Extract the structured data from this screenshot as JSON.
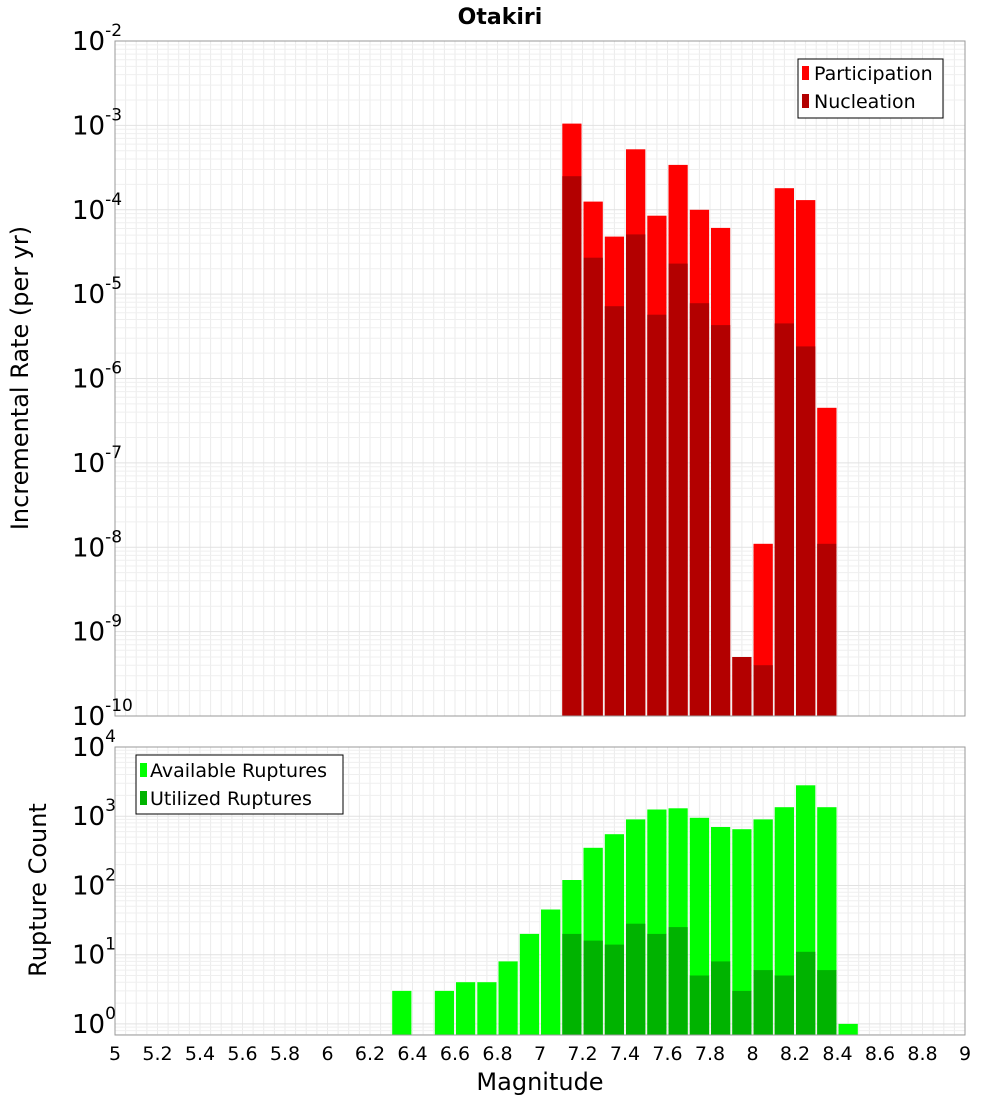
{
  "chart_data": [
    {
      "id": "rate",
      "type": "bar",
      "title": "Otakiri",
      "xlabel": "Magnitude",
      "ylabel": "Incremental Rate (per yr)",
      "xlim": [
        5,
        9
      ],
      "y_log_scale": true,
      "y_exponent_range": [
        -10,
        -2
      ],
      "y_tick_exponents": [
        "-10",
        "-9",
        "-8",
        "-7",
        "-6",
        "-5",
        "-4",
        "-3",
        "-2"
      ],
      "bin_width": 0.1,
      "grid": true,
      "legend_position": "top-right",
      "colors": {
        "participation": "#ff0000",
        "nucleation": "#b30000"
      },
      "series": [
        {
          "name": "Participation",
          "x": [
            7.15,
            7.25,
            7.35,
            7.45,
            7.55,
            7.65,
            7.75,
            7.85,
            7.95,
            8.05,
            8.15,
            8.25,
            8.35
          ],
          "values": [
            0.00105,
            0.000125,
            4.8e-05,
            0.00052,
            8.5e-05,
            0.00034,
            0.0001,
            6.1e-05,
            5e-10,
            1.1e-08,
            0.00018,
            0.00013,
            4.5e-07
          ]
        },
        {
          "name": "Nucleation",
          "x": [
            7.15,
            7.25,
            7.35,
            7.45,
            7.55,
            7.65,
            7.75,
            7.85,
            7.95,
            8.05,
            8.15,
            8.25,
            8.35
          ],
          "values": [
            0.00025,
            2.7e-05,
            7.2e-06,
            5.1e-05,
            5.7e-06,
            2.3e-05,
            7.8e-06,
            4.3e-06,
            5e-10,
            4e-10,
            4.5e-06,
            2.4e-06,
            1.1e-08
          ]
        }
      ]
    },
    {
      "id": "count",
      "type": "bar",
      "xlabel": "Magnitude",
      "ylabel": "Rupture Count",
      "xlim": [
        5,
        9
      ],
      "x_ticks": [
        "5",
        "5.2",
        "5.4",
        "5.6",
        "5.8",
        "6",
        "6.2",
        "6.4",
        "6.6",
        "6.8",
        "7",
        "7.2",
        "7.4",
        "7.6",
        "7.8",
        "8",
        "8.2",
        "8.4",
        "8.6",
        "8.8",
        "9"
      ],
      "y_log_scale": true,
      "y_tick_exponents": [
        "0",
        "1",
        "2",
        "3",
        "4"
      ],
      "bin_width": 0.1,
      "grid": true,
      "legend_position": "top-left",
      "colors": {
        "available": "#00ff00",
        "utilized": "#00b300"
      },
      "series": [
        {
          "name": "Available Ruptures",
          "x": [
            6.35,
            6.55,
            6.65,
            6.75,
            6.85,
            6.95,
            7.05,
            7.15,
            7.25,
            7.35,
            7.45,
            7.55,
            7.65,
            7.75,
            7.85,
            7.95,
            8.05,
            8.15,
            8.25,
            8.35,
            8.45
          ],
          "values": [
            3,
            3,
            4,
            4,
            8,
            20,
            45,
            120,
            350,
            550,
            900,
            1250,
            1300,
            950,
            700,
            650,
            900,
            1350,
            2800,
            1350,
            1
          ]
        },
        {
          "name": "Utilized Ruptures",
          "x": [
            7.15,
            7.25,
            7.35,
            7.45,
            7.55,
            7.65,
            7.75,
            7.85,
            7.95,
            8.05,
            8.15,
            8.25,
            8.35
          ],
          "values": [
            20,
            16,
            14,
            28,
            20,
            25,
            5,
            8,
            3,
            6,
            5,
            11,
            6
          ]
        }
      ]
    }
  ]
}
